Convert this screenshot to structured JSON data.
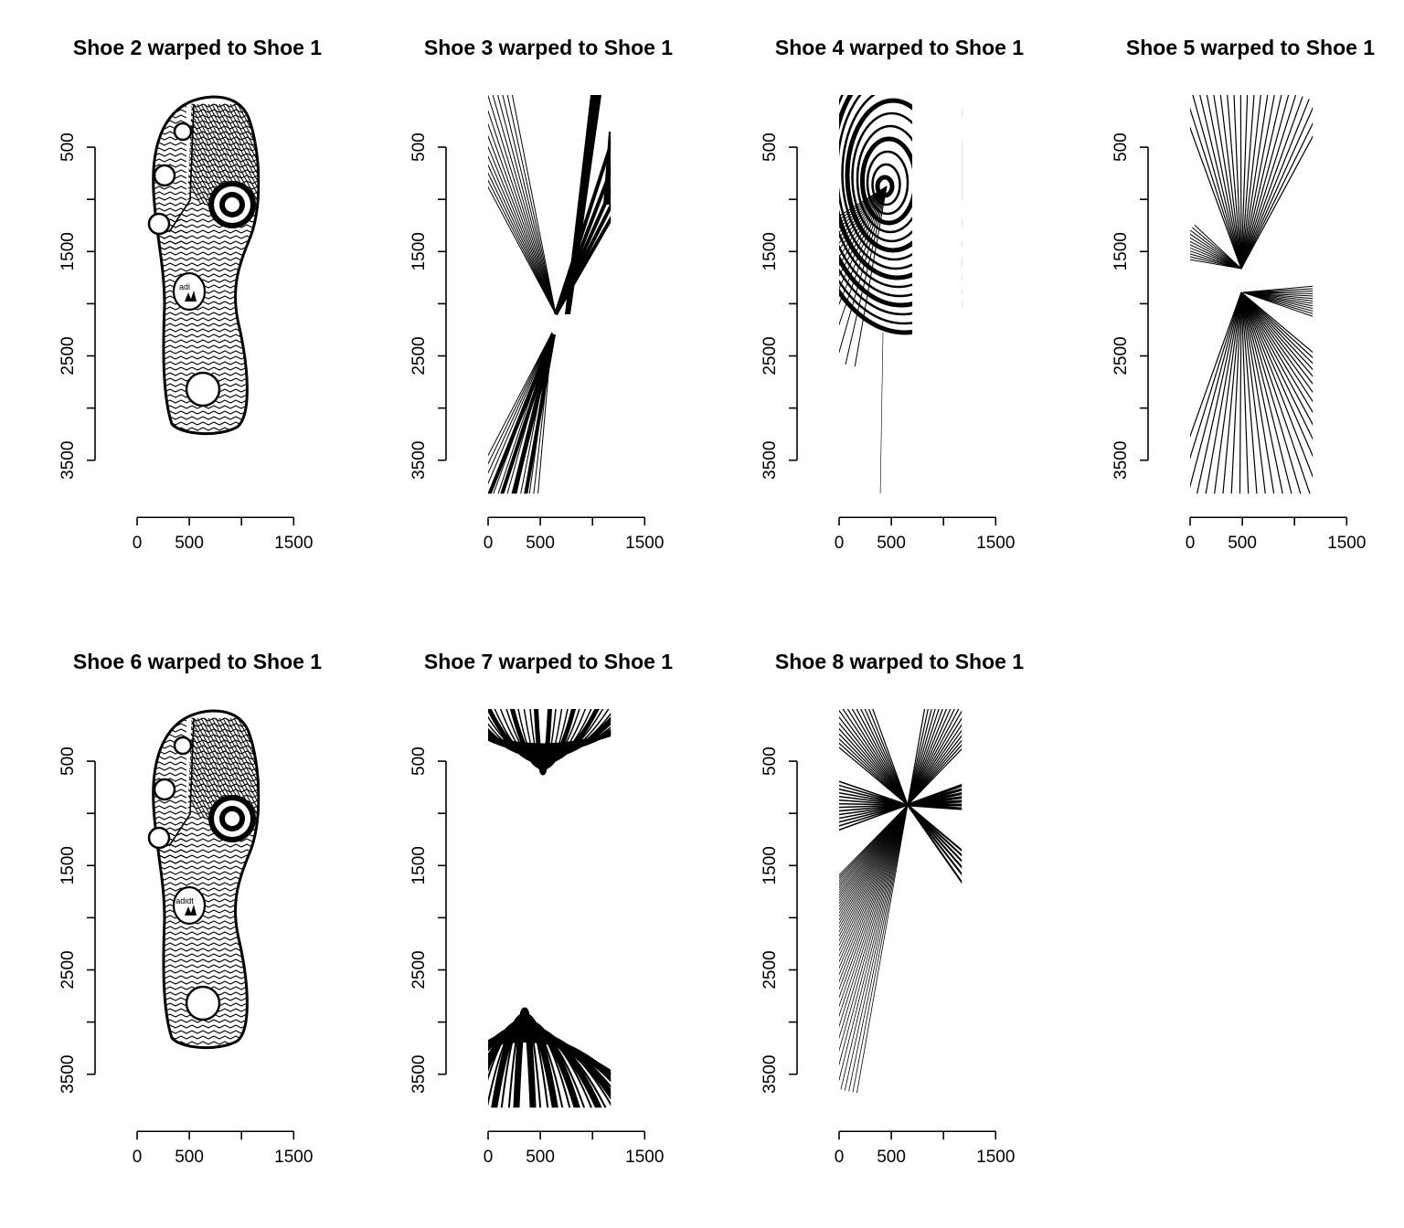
{
  "chart_data": [
    {
      "type": "image",
      "title": "Shoe 2 warped to Shoe 1",
      "pattern": "shoe",
      "logo_text": "adi",
      "x_ticks": [
        0,
        500,
        1000,
        1500
      ],
      "x_tick_labels": [
        "0",
        "500",
        "",
        "1500"
      ],
      "xlim": [
        0,
        1500
      ],
      "y_ticks": [
        500,
        1000,
        1500,
        2000,
        2500,
        3000,
        3500
      ],
      "y_tick_labels": [
        "500",
        "",
        "1500",
        "",
        "2500",
        "",
        "3500"
      ],
      "ylim": [
        0,
        3500
      ]
    },
    {
      "type": "image",
      "title": "Shoe 3 warped to Shoe 1",
      "pattern": "distorted-hourglass",
      "x_ticks": [
        0,
        500,
        1000,
        1500
      ],
      "x_tick_labels": [
        "0",
        "500",
        "",
        "1500"
      ],
      "xlim": [
        0,
        1500
      ],
      "y_ticks": [
        500,
        1000,
        1500,
        2000,
        2500,
        3000,
        3500
      ],
      "y_tick_labels": [
        "500",
        "",
        "1500",
        "",
        "2500",
        "",
        "3500"
      ],
      "ylim": [
        0,
        3500
      ]
    },
    {
      "type": "image",
      "title": "Shoe 4 warped to Shoe 1",
      "pattern": "distorted-swirl",
      "x_ticks": [
        0,
        500,
        1000,
        1500
      ],
      "x_tick_labels": [
        "0",
        "500",
        "",
        "1500"
      ],
      "xlim": [
        0,
        1500
      ],
      "y_ticks": [
        500,
        1000,
        1500,
        2000,
        2500,
        3000,
        3500
      ],
      "y_tick_labels": [
        "500",
        "",
        "1500",
        "",
        "2500",
        "",
        "3500"
      ],
      "ylim": [
        0,
        3500
      ]
    },
    {
      "type": "image",
      "title": "Shoe 5 warped to Shoe 1",
      "pattern": "distorted-fans",
      "x_ticks": [
        0,
        500,
        1000,
        1500
      ],
      "x_tick_labels": [
        "0",
        "500",
        "",
        "1500"
      ],
      "xlim": [
        0,
        1500
      ],
      "y_ticks": [
        500,
        1000,
        1500,
        2000,
        2500,
        3000,
        3500
      ],
      "y_tick_labels": [
        "500",
        "",
        "1500",
        "",
        "2500",
        "",
        "3500"
      ],
      "ylim": [
        0,
        3500
      ]
    },
    {
      "type": "image",
      "title": "Shoe 6 warped to Shoe 1",
      "pattern": "shoe",
      "logo_text": "adidt",
      "x_ticks": [
        0,
        500,
        1000,
        1500
      ],
      "x_tick_labels": [
        "0",
        "500",
        "",
        "1500"
      ],
      "xlim": [
        0,
        1500
      ],
      "y_ticks": [
        500,
        1000,
        1500,
        2000,
        2500,
        3000,
        3500
      ],
      "y_tick_labels": [
        "500",
        "",
        "1500",
        "",
        "2500",
        "",
        "3500"
      ],
      "ylim": [
        0,
        3500
      ]
    },
    {
      "type": "image",
      "title": "Shoe 7 warped to Shoe 1",
      "pattern": "distorted-arches",
      "x_ticks": [
        0,
        500,
        1000,
        1500
      ],
      "x_tick_labels": [
        "0",
        "500",
        "",
        "1500"
      ],
      "xlim": [
        0,
        1500
      ],
      "y_ticks": [
        500,
        1000,
        1500,
        2000,
        2500,
        3000,
        3500
      ],
      "y_tick_labels": [
        "500",
        "",
        "1500",
        "",
        "2500",
        "",
        "3500"
      ],
      "ylim": [
        0,
        3500
      ]
    },
    {
      "type": "image",
      "title": "Shoe 8 warped to Shoe 1",
      "pattern": "distorted-star",
      "x_ticks": [
        0,
        500,
        1000,
        1500
      ],
      "x_tick_labels": [
        "0",
        "500",
        "",
        "1500"
      ],
      "xlim": [
        0,
        1500
      ],
      "y_ticks": [
        500,
        1000,
        1500,
        2000,
        2500,
        3000,
        3500
      ],
      "y_tick_labels": [
        "500",
        "",
        "1500",
        "",
        "2500",
        "",
        "3500"
      ],
      "ylim": [
        0,
        3500
      ]
    }
  ]
}
